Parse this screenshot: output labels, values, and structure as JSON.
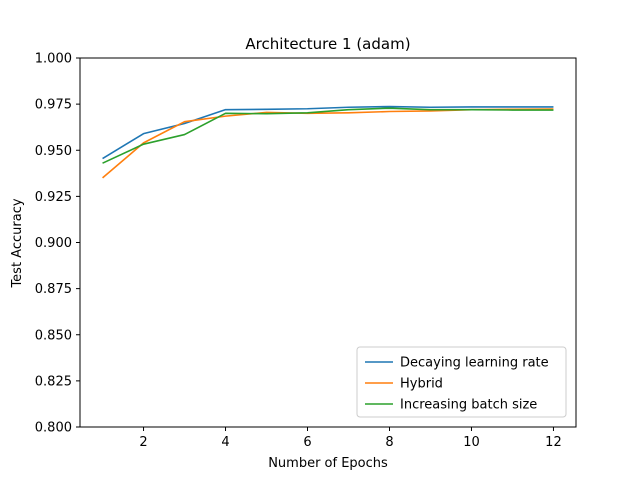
{
  "chart_data": {
    "type": "line",
    "title": "Architecture 1 (adam)",
    "xlabel": "Number of Epochs",
    "ylabel": "Test Accuracy",
    "xlim": [
      0.45,
      12.55
    ],
    "ylim": [
      0.8,
      1.0
    ],
    "xticks": [
      2,
      4,
      6,
      8,
      10,
      12
    ],
    "yticks": [
      0.8,
      0.825,
      0.85,
      0.875,
      0.9,
      0.925,
      0.95,
      0.975,
      1.0
    ],
    "ytick_labels": [
      "0.800",
      "0.825",
      "0.850",
      "0.875",
      "0.900",
      "0.925",
      "0.950",
      "0.975",
      "1.000"
    ],
    "grid": false,
    "legend_position": "lower-right",
    "x": [
      1,
      2,
      3,
      4,
      5,
      6,
      7,
      8,
      9,
      10,
      11,
      12
    ],
    "series": [
      {
        "name": "Decaying learning rate",
        "color": "#1f77b4",
        "values": [
          0.9455,
          0.959,
          0.9645,
          0.972,
          0.9722,
          0.9725,
          0.9733,
          0.9737,
          0.9733,
          0.9735,
          0.9735,
          0.9735
        ]
      },
      {
        "name": "Hybrid",
        "color": "#ff7f0e",
        "values": [
          0.935,
          0.954,
          0.9655,
          0.9685,
          0.9705,
          0.97,
          0.9703,
          0.971,
          0.9713,
          0.972,
          0.9722,
          0.9723
        ]
      },
      {
        "name": "Increasing batch size",
        "color": "#2ca02c",
        "values": [
          0.943,
          0.9533,
          0.9585,
          0.97,
          0.9698,
          0.9703,
          0.972,
          0.9728,
          0.972,
          0.972,
          0.9718,
          0.9718
        ]
      }
    ]
  }
}
